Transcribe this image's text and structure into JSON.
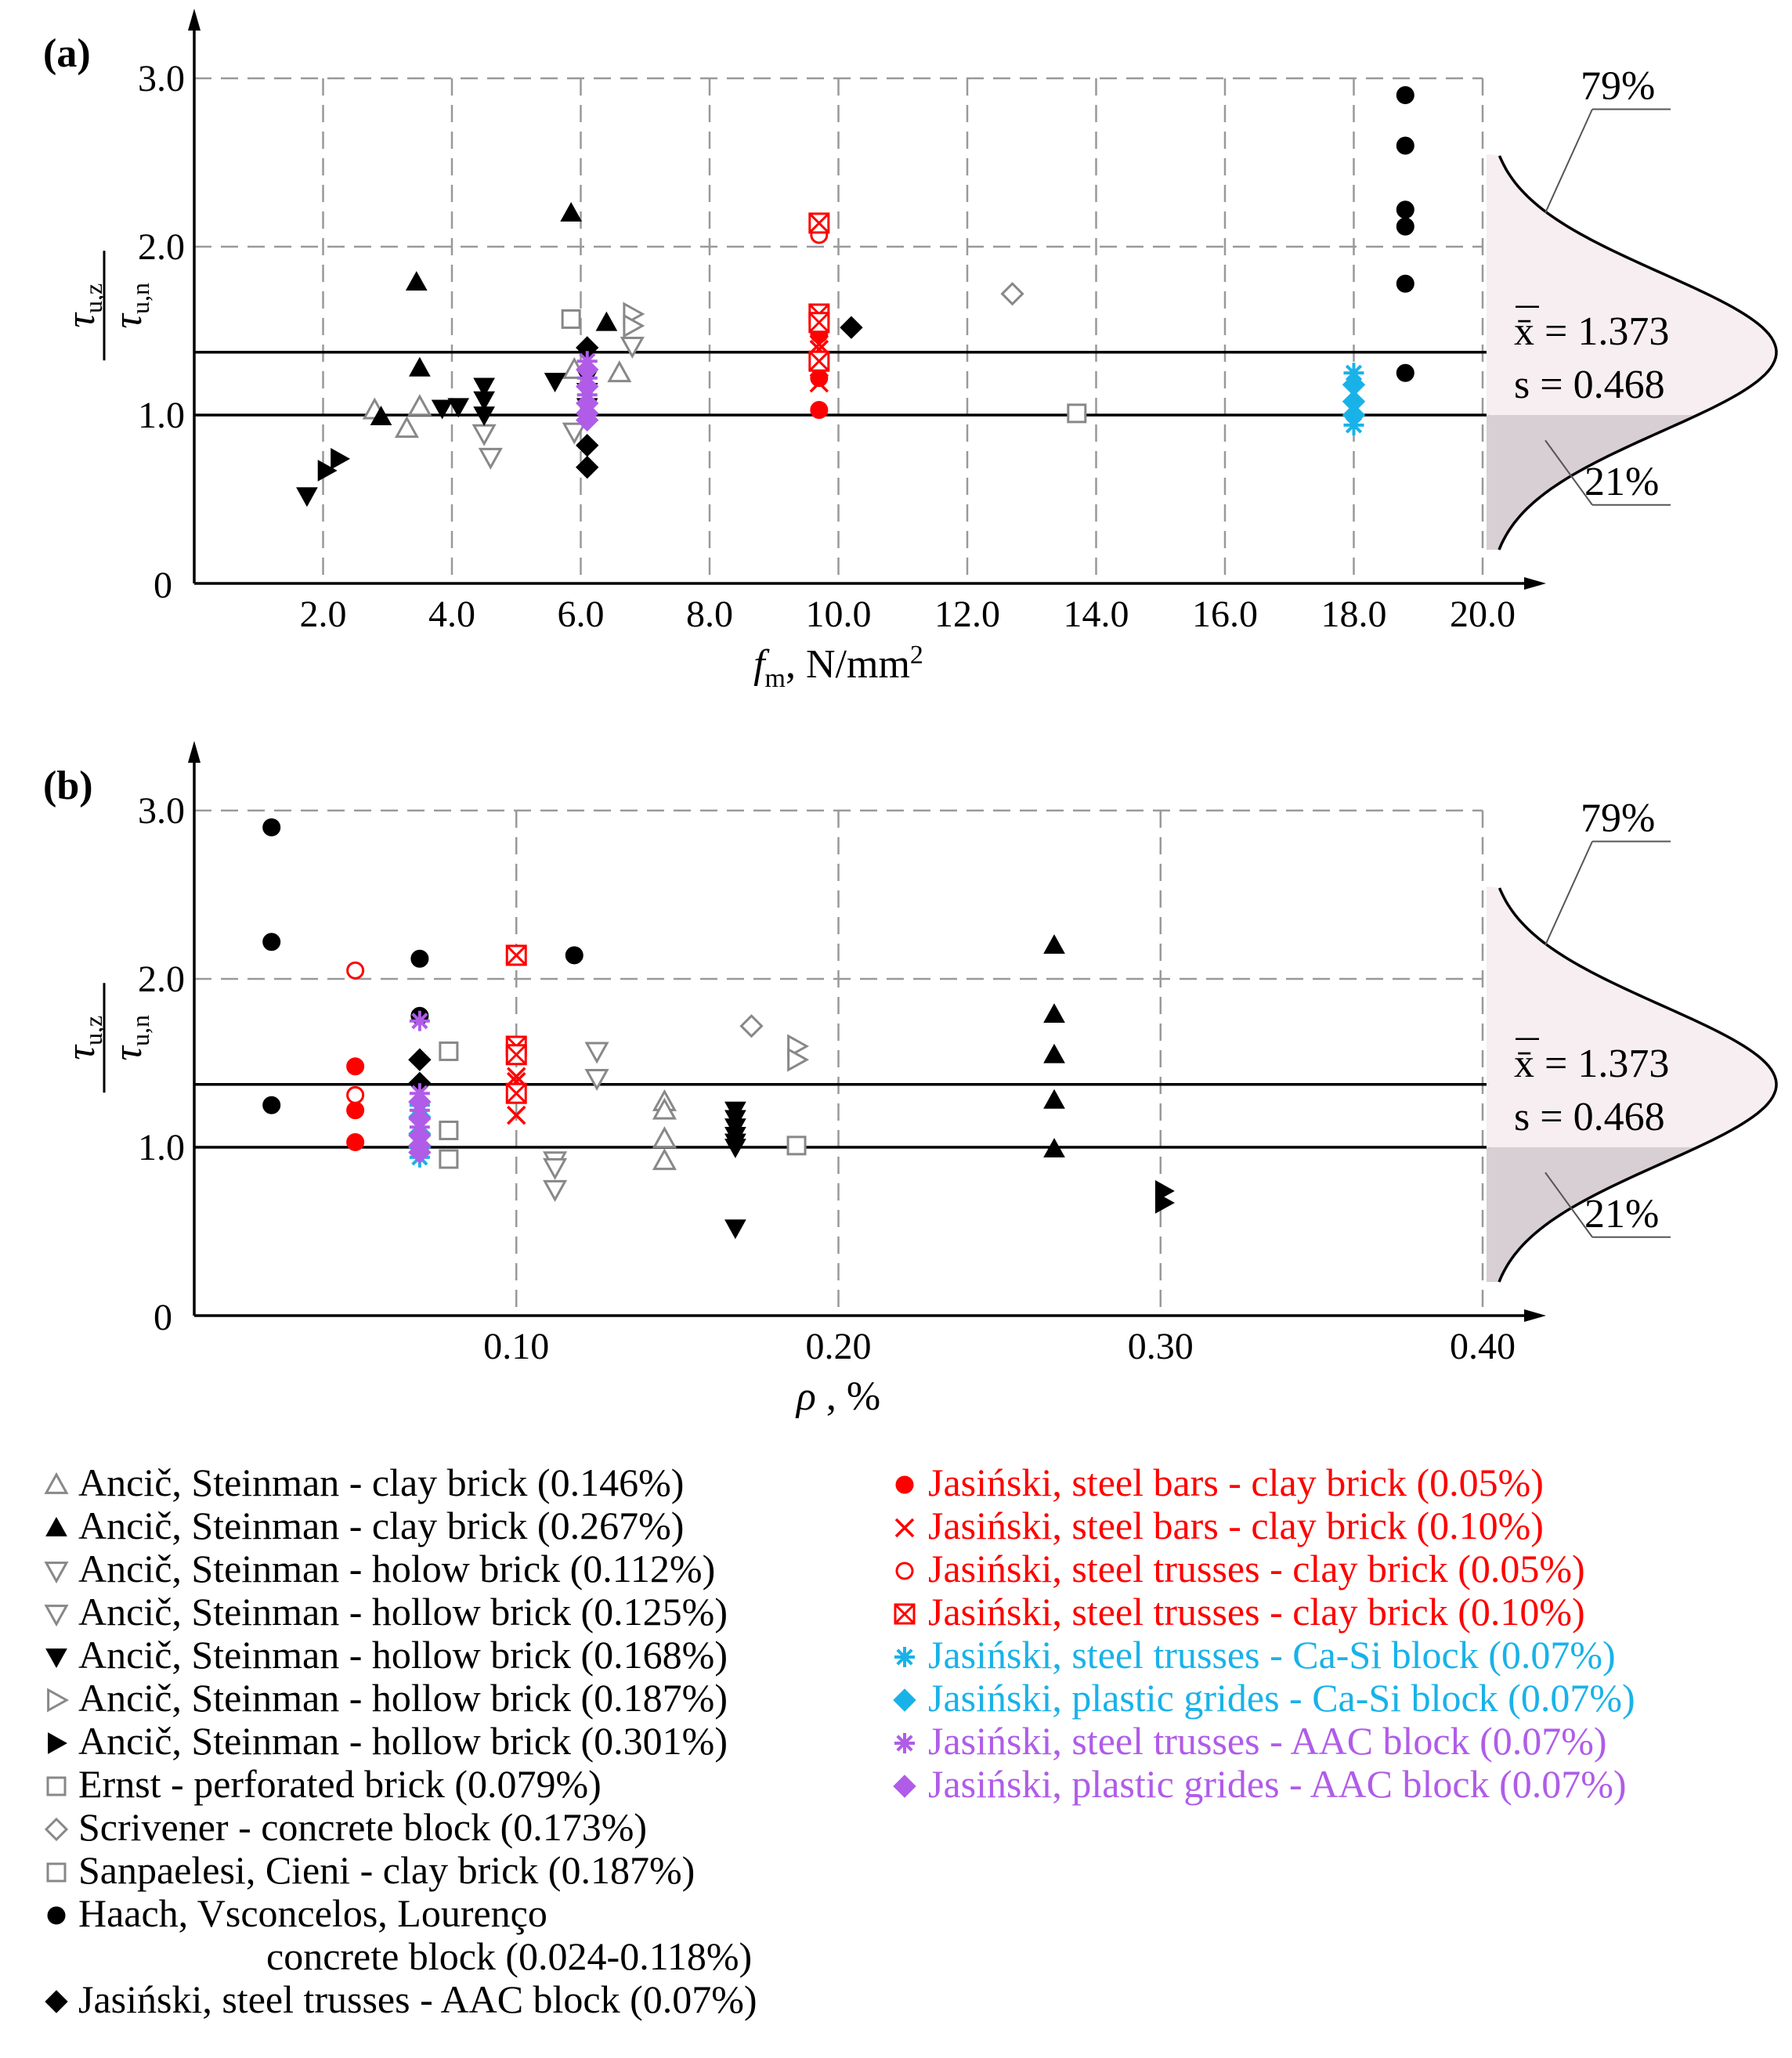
{
  "chart_data": [
    {
      "type": "scatter",
      "panel_label": "(a)",
      "xlabel_main": "f",
      "xlabel_sub": "m",
      "xlabel_units": ",  N/mm",
      "xlabel_sup": "2",
      "ylabel": "τu,z / τu,n",
      "xlim": [
        0,
        20.0
      ],
      "ylim": [
        0,
        3.0
      ],
      "x_ticks": [
        "2.0",
        "4.0",
        "6.0",
        "8.0",
        "10.0",
        "12.0",
        "14.0",
        "16.0",
        "18.0",
        "20.0"
      ],
      "y_ticks": [
        "0",
        "1.0",
        "2.0",
        "3.0"
      ],
      "mean_line": 1.373,
      "unity_line": 1.0,
      "dist_labels": {
        "upper": "79%",
        "lower": "21%",
        "mean": "x̄ = 1.373",
        "sd": "s = 0.468"
      },
      "points": [
        {
          "series": "s1",
          "x": 2.8,
          "y": 1.03
        },
        {
          "series": "s1",
          "x": 3.3,
          "y": 0.92
        },
        {
          "series": "s1",
          "x": 3.5,
          "y": 1.05
        },
        {
          "series": "s1",
          "x": 5.9,
          "y": 1.27
        },
        {
          "series": "s1",
          "x": 6.6,
          "y": 1.25
        },
        {
          "series": "s2",
          "x": 2.9,
          "y": 0.99
        },
        {
          "series": "s2",
          "x": 3.45,
          "y": 1.79
        },
        {
          "series": "s2",
          "x": 3.5,
          "y": 1.28
        },
        {
          "series": "s2",
          "x": 5.85,
          "y": 2.2
        },
        {
          "series": "s2",
          "x": 6.4,
          "y": 1.55
        },
        {
          "series": "s3",
          "x": 4.5,
          "y": 0.89
        },
        {
          "series": "s3",
          "x": 5.9,
          "y": 0.9
        },
        {
          "series": "s4",
          "x": 4.6,
          "y": 0.75
        },
        {
          "series": "s4",
          "x": 6.8,
          "y": 1.41
        },
        {
          "series": "s5",
          "x": 1.75,
          "y": 0.52
        },
        {
          "series": "s5",
          "x": 3.85,
          "y": 1.04
        },
        {
          "series": "s5",
          "x": 4.1,
          "y": 1.05
        },
        {
          "series": "s5",
          "x": 4.5,
          "y": 1.17
        },
        {
          "series": "s5",
          "x": 4.5,
          "y": 1.09
        },
        {
          "series": "s5",
          "x": 4.5,
          "y": 1.0
        },
        {
          "series": "s5",
          "x": 5.6,
          "y": 1.2
        },
        {
          "series": "s5",
          "x": 6.1,
          "y": 1.22
        },
        {
          "series": "s5",
          "x": 6.1,
          "y": 1.14
        },
        {
          "series": "s5",
          "x": 6.1,
          "y": 1.05
        },
        {
          "series": "s6",
          "x": 6.8,
          "y": 1.6
        },
        {
          "series": "s6",
          "x": 6.8,
          "y": 1.53
        },
        {
          "series": "s7",
          "x": 2.05,
          "y": 0.67
        },
        {
          "series": "s7",
          "x": 2.25,
          "y": 0.74
        },
        {
          "series": "s8",
          "x": 5.85,
          "y": 1.57
        },
        {
          "series": "s9",
          "x": 12.7,
          "y": 1.72
        },
        {
          "series": "s10",
          "x": 13.7,
          "y": 1.01
        },
        {
          "series": "s11",
          "x": 18.8,
          "y": 2.9
        },
        {
          "series": "s11",
          "x": 18.8,
          "y": 2.6
        },
        {
          "series": "s11",
          "x": 18.8,
          "y": 2.22
        },
        {
          "series": "s11",
          "x": 18.8,
          "y": 2.12
        },
        {
          "series": "s11",
          "x": 18.8,
          "y": 1.78
        },
        {
          "series": "s11",
          "x": 18.8,
          "y": 1.25
        },
        {
          "series": "s12",
          "x": 6.1,
          "y": 1.4
        },
        {
          "series": "s12",
          "x": 6.1,
          "y": 0.82
        },
        {
          "series": "s12",
          "x": 6.1,
          "y": 0.69
        },
        {
          "series": "s12",
          "x": 10.2,
          "y": 1.52
        },
        {
          "series": "s13",
          "x": 9.7,
          "y": 1.03
        },
        {
          "series": "s13",
          "x": 9.7,
          "y": 1.22
        },
        {
          "series": "s13",
          "x": 9.7,
          "y": 1.48
        },
        {
          "series": "s14",
          "x": 9.7,
          "y": 1.19
        },
        {
          "series": "s14",
          "x": 9.7,
          "y": 1.39
        },
        {
          "series": "s14",
          "x": 9.7,
          "y": 1.42
        },
        {
          "series": "s15",
          "x": 9.7,
          "y": 2.07
        },
        {
          "series": "s15",
          "x": 9.7,
          "y": 1.31
        },
        {
          "series": "s16",
          "x": 9.7,
          "y": 2.14
        },
        {
          "series": "s16",
          "x": 9.7,
          "y": 1.6
        },
        {
          "series": "s16",
          "x": 9.7,
          "y": 1.55
        },
        {
          "series": "s16",
          "x": 9.7,
          "y": 1.32
        },
        {
          "series": "s17",
          "x": 18.0,
          "y": 1.25
        },
        {
          "series": "s17",
          "x": 18.0,
          "y": 0.94
        },
        {
          "series": "s18",
          "x": 18.0,
          "y": 1.18
        },
        {
          "series": "s18",
          "x": 18.0,
          "y": 1.08
        },
        {
          "series": "s18",
          "x": 18.0,
          "y": 1.0
        },
        {
          "series": "s19",
          "x": 6.1,
          "y": 1.32
        },
        {
          "series": "s19",
          "x": 6.1,
          "y": 1.22
        },
        {
          "series": "s19",
          "x": 6.1,
          "y": 1.12
        },
        {
          "series": "s20",
          "x": 6.1,
          "y": 1.27
        },
        {
          "series": "s20",
          "x": 6.1,
          "y": 1.17
        },
        {
          "series": "s20",
          "x": 6.1,
          "y": 1.07
        },
        {
          "series": "s20",
          "x": 6.1,
          "y": 1.01
        },
        {
          "series": "s20",
          "x": 6.1,
          "y": 0.97
        }
      ]
    },
    {
      "type": "scatter",
      "panel_label": "(b)",
      "xlabel_main": "ρ",
      "xlabel_units": " , %",
      "ylabel": "τu,z / τu,n",
      "xlim": [
        0,
        0.4
      ],
      "ylim": [
        0,
        3.0
      ],
      "x_ticks": [
        "0.10",
        "0.20",
        "0.30",
        "0.40"
      ],
      "y_ticks": [
        "0",
        "1.0",
        "2.0",
        "3.0"
      ],
      "mean_line": 1.373,
      "unity_line": 1.0,
      "dist_labels": {
        "upper": "79%",
        "lower": "21%",
        "mean": "x̄ = 1.373",
        "sd": "s = 0.468"
      },
      "points": [
        {
          "series": "s1",
          "x": 0.146,
          "y": 1.27
        },
        {
          "series": "s1",
          "x": 0.146,
          "y": 1.22
        },
        {
          "series": "s1",
          "x": 0.146,
          "y": 1.05
        },
        {
          "series": "s1",
          "x": 0.146,
          "y": 0.92
        },
        {
          "series": "s2",
          "x": 0.267,
          "y": 2.2
        },
        {
          "series": "s2",
          "x": 0.267,
          "y": 1.79
        },
        {
          "series": "s2",
          "x": 0.267,
          "y": 1.55
        },
        {
          "series": "s2",
          "x": 0.267,
          "y": 1.28
        },
        {
          "series": "s2",
          "x": 0.267,
          "y": 0.99
        },
        {
          "series": "s3",
          "x": 0.112,
          "y": 0.92
        },
        {
          "series": "s3",
          "x": 0.112,
          "y": 0.88
        },
        {
          "series": "s3",
          "x": 0.112,
          "y": 0.75
        },
        {
          "series": "s4",
          "x": 0.125,
          "y": 1.57
        },
        {
          "series": "s4",
          "x": 0.125,
          "y": 1.41
        },
        {
          "series": "s5",
          "x": 0.168,
          "y": 1.22
        },
        {
          "series": "s5",
          "x": 0.168,
          "y": 1.17
        },
        {
          "series": "s5",
          "x": 0.168,
          "y": 1.12
        },
        {
          "series": "s5",
          "x": 0.168,
          "y": 1.07
        },
        {
          "series": "s5",
          "x": 0.168,
          "y": 1.03
        },
        {
          "series": "s5",
          "x": 0.168,
          "y": 1.0
        },
        {
          "series": "s5",
          "x": 0.168,
          "y": 0.52
        },
        {
          "series": "s6",
          "x": 0.187,
          "y": 1.6
        },
        {
          "series": "s6",
          "x": 0.187,
          "y": 1.52
        },
        {
          "series": "s7",
          "x": 0.301,
          "y": 0.74
        },
        {
          "series": "s7",
          "x": 0.301,
          "y": 0.67
        },
        {
          "series": "s8",
          "x": 0.079,
          "y": 1.57
        },
        {
          "series": "s8",
          "x": 0.079,
          "y": 1.1
        },
        {
          "series": "s8",
          "x": 0.079,
          "y": 0.93
        },
        {
          "series": "s9",
          "x": 0.173,
          "y": 1.72
        },
        {
          "series": "s10",
          "x": 0.187,
          "y": 1.01
        },
        {
          "series": "s11",
          "x": 0.024,
          "y": 2.9
        },
        {
          "series": "s11",
          "x": 0.024,
          "y": 2.22
        },
        {
          "series": "s11",
          "x": 0.024,
          "y": 1.25
        },
        {
          "series": "s11",
          "x": 0.07,
          "y": 2.12
        },
        {
          "series": "s11",
          "x": 0.07,
          "y": 1.78
        },
        {
          "series": "s11",
          "x": 0.118,
          "y": 2.14
        },
        {
          "series": "s12",
          "x": 0.07,
          "y": 1.52
        },
        {
          "series": "s12",
          "x": 0.07,
          "y": 1.38
        },
        {
          "series": "s13",
          "x": 0.05,
          "y": 1.48
        },
        {
          "series": "s13",
          "x": 0.05,
          "y": 1.22
        },
        {
          "series": "s13",
          "x": 0.05,
          "y": 1.03
        },
        {
          "series": "s14",
          "x": 0.1,
          "y": 1.42
        },
        {
          "series": "s14",
          "x": 0.1,
          "y": 1.39
        },
        {
          "series": "s14",
          "x": 0.1,
          "y": 1.19
        },
        {
          "series": "s15",
          "x": 0.05,
          "y": 2.05
        },
        {
          "series": "s15",
          "x": 0.05,
          "y": 1.31
        },
        {
          "series": "s16",
          "x": 0.1,
          "y": 2.14
        },
        {
          "series": "s16",
          "x": 0.1,
          "y": 1.6
        },
        {
          "series": "s16",
          "x": 0.1,
          "y": 1.55
        },
        {
          "series": "s16",
          "x": 0.1,
          "y": 1.32
        },
        {
          "series": "s17",
          "x": 0.07,
          "y": 1.25
        },
        {
          "series": "s17",
          "x": 0.07,
          "y": 0.94
        },
        {
          "series": "s18",
          "x": 0.07,
          "y": 1.18
        },
        {
          "series": "s18",
          "x": 0.07,
          "y": 1.08
        },
        {
          "series": "s18",
          "x": 0.07,
          "y": 1.0
        },
        {
          "series": "s19",
          "x": 0.07,
          "y": 1.75
        },
        {
          "series": "s19",
          "x": 0.07,
          "y": 1.32
        },
        {
          "series": "s19",
          "x": 0.07,
          "y": 1.22
        },
        {
          "series": "s19",
          "x": 0.07,
          "y": 1.12
        },
        {
          "series": "s20",
          "x": 0.07,
          "y": 1.27
        },
        {
          "series": "s20",
          "x": 0.07,
          "y": 1.17
        },
        {
          "series": "s20",
          "x": 0.07,
          "y": 1.07
        },
        {
          "series": "s20",
          "x": 0.07,
          "y": 1.01
        },
        {
          "series": "s20",
          "x": 0.07,
          "y": 0.97
        }
      ]
    }
  ],
  "series": [
    {
      "id": "s1",
      "name": "Ancič, Steinman - clay brick (0.146%)",
      "marker": "triangle-open",
      "color": "#888888"
    },
    {
      "id": "s2",
      "name": "Ancič, Steinman - clay brick (0.267%)",
      "marker": "triangle-filled",
      "color": "#000000"
    },
    {
      "id": "s3",
      "name": "Ancič, Steinman - holow brick (0.112%)",
      "marker": "triangle-down-open",
      "color": "#888888"
    },
    {
      "id": "s4",
      "name": "Ancič, Steinman - hollow brick (0.125%)",
      "marker": "triangle-down-open",
      "color": "#888888"
    },
    {
      "id": "s5",
      "name": "Ancič, Steinman - hollow brick (0.168%)",
      "marker": "triangle-down-filled",
      "color": "#000000"
    },
    {
      "id": "s6",
      "name": "Ancič, Steinman - hollow brick (0.187%)",
      "marker": "triangle-right-open",
      "color": "#888888"
    },
    {
      "id": "s7",
      "name": "Ancič, Steinman - hollow brick (0.301%)",
      "marker": "triangle-right-filled",
      "color": "#000000"
    },
    {
      "id": "s8",
      "name": "Ernst - perforated brick (0.079%)",
      "marker": "square-open",
      "color": "#888888"
    },
    {
      "id": "s9",
      "name": "Scrivener - concrete block (0.173%)",
      "marker": "diamond-open",
      "color": "#888888"
    },
    {
      "id": "s10",
      "name": "Sanpaelesi, Cieni - clay brick (0.187%)",
      "marker": "square-open",
      "color": "#888888"
    },
    {
      "id": "s11",
      "name": "Haach, Vsconcelos, Lourenço",
      "name_line2": "concrete block (0.024-0.118%)",
      "marker": "circle-filled",
      "color": "#000000"
    },
    {
      "id": "s12",
      "name": "Jasiński, steel trusses - AAC block (0.07%)",
      "marker": "diamond-filled",
      "color": "#000000"
    },
    {
      "id": "s13",
      "name": "Jasiński, steel bars - clay brick (0.05%)",
      "marker": "circle-filled",
      "color": "#ff0000"
    },
    {
      "id": "s14",
      "name": "Jasiński, steel bars - clay brick (0.10%)",
      "marker": "cross",
      "color": "#ff0000"
    },
    {
      "id": "s15",
      "name": "Jasiński, steel trusses - clay brick (0.05%)",
      "marker": "circle-open",
      "color": "#ff0000"
    },
    {
      "id": "s16",
      "name": "Jasiński, steel trusses - clay brick (0.10%)",
      "marker": "square-cross",
      "color": "#ff0000"
    },
    {
      "id": "s17",
      "name": "Jasiński, steel trusses - Ca-Si block (0.07%)",
      "marker": "asterisk",
      "color": "#19b2e8"
    },
    {
      "id": "s18",
      "name": "Jasiński, plastic grides - Ca-Si block (0.07%)",
      "marker": "diamond-filled",
      "color": "#19b2e8"
    },
    {
      "id": "s19",
      "name": "Jasiński, steel trusses - AAC block (0.07%)",
      "marker": "asterisk",
      "color": "#b05ce8"
    },
    {
      "id": "s20",
      "name": "Jasiński, plastic grides - AAC block (0.07%)",
      "marker": "diamond-filled",
      "color": "#b05ce8"
    }
  ]
}
